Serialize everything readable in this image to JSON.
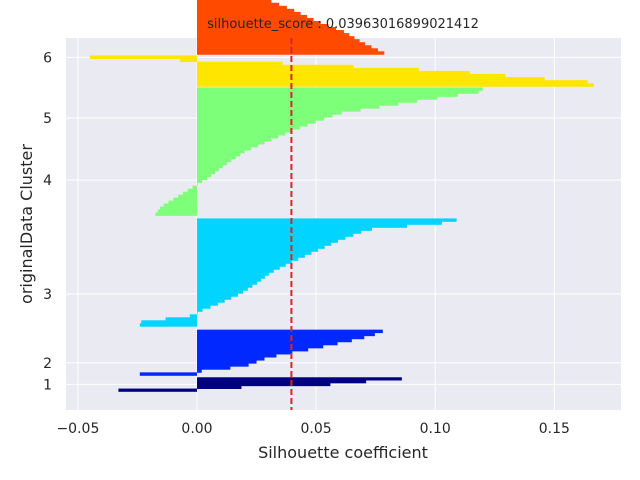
{
  "chart_data": {
    "type": "bar",
    "orientation": "horizontal",
    "title": "silhouette_score : 0.03963016899021412",
    "xlabel": "Silhouette coefficient",
    "ylabel": "originalData Cluster",
    "xlim": [
      -0.055,
      0.178
    ],
    "ylim": [
      0,
      100
    ],
    "grid": true,
    "xticks": [
      {
        "value": -0.05,
        "label": "−0.05"
      },
      {
        "value": 0.0,
        "label": "0.00"
      },
      {
        "value": 0.05,
        "label": "0.05"
      },
      {
        "value": 0.1,
        "label": "0.10"
      },
      {
        "value": 0.15,
        "label": "0.15"
      }
    ],
    "reference_line": {
      "value": 0.03963016899021412,
      "color": "#d62728",
      "style": "dashed"
    },
    "clusters": [
      {
        "label": "1",
        "color": "#000080",
        "y_range": [
          5.0,
          8.8
        ],
        "label_y": 6.9,
        "profile": [
          [
            0,
            0.109
          ],
          [
            0.05,
            0.109
          ],
          [
            0.1,
            0.086
          ],
          [
            0.5,
            0.056
          ],
          [
            0.8,
            0.0
          ],
          [
            0.86,
            -0.033
          ],
          [
            1,
            -0.033
          ]
        ]
      },
      {
        "label": "2",
        "color": "#0028ff",
        "y_range": [
          9.3,
          21.6
        ],
        "label_y": 12.7,
        "profile": [
          [
            0,
            0.078
          ],
          [
            0.05,
            0.078
          ],
          [
            0.2,
            0.068
          ],
          [
            0.4,
            0.05
          ],
          [
            0.6,
            0.03
          ],
          [
            0.8,
            0.02
          ],
          [
            0.9,
            0.002
          ],
          [
            0.94,
            -0.024
          ],
          [
            1,
            -0.024
          ]
        ]
      },
      {
        "label": "3",
        "color": "#00d4ff",
        "y_range": [
          22.5,
          51.5
        ],
        "label_y": 31.2,
        "profile": [
          [
            0,
            0.109
          ],
          [
            0.03,
            0.109
          ],
          [
            0.1,
            0.072
          ],
          [
            0.2,
            0.06
          ],
          [
            0.3,
            0.05
          ],
          [
            0.4,
            0.04
          ],
          [
            0.5,
            0.031
          ],
          [
            0.6,
            0.025
          ],
          [
            0.7,
            0.018
          ],
          [
            0.8,
            0.008
          ],
          [
            0.85,
            0.002
          ],
          [
            0.9,
            -0.002
          ],
          [
            0.96,
            -0.024
          ],
          [
            1,
            -0.024
          ]
        ]
      },
      {
        "label": "4",
        "color": "#7dff7a",
        "y_range": [
          52.3,
          86.7
        ],
        "label_y": 61.8,
        "profile": [
          [
            0,
            0.12
          ],
          [
            0.03,
            0.12
          ],
          [
            0.1,
            0.094
          ],
          [
            0.2,
            0.06
          ],
          [
            0.3,
            0.045
          ],
          [
            0.4,
            0.032
          ],
          [
            0.5,
            0.02
          ],
          [
            0.6,
            0.012
          ],
          [
            0.7,
            0.005
          ],
          [
            0.78,
            -0.002
          ],
          [
            0.85,
            -0.008
          ],
          [
            0.93,
            -0.015
          ],
          [
            1,
            -0.018
          ]
        ]
      },
      {
        "label": "5",
        "color": "#ffe600",
        "y_range": [
          87.0,
          95.3
        ],
        "label_y": 78.5,
        "profile": [
          [
            0,
            -0.045
          ],
          [
            0.08,
            -0.045
          ],
          [
            0.2,
            0.02
          ],
          [
            0.3,
            0.052
          ],
          [
            0.5,
            0.107
          ],
          [
            0.7,
            0.137
          ],
          [
            0.85,
            0.164
          ],
          [
            1,
            0.168
          ]
        ]
      },
      {
        "label": "6",
        "color": "#ff4a00",
        "y_range": [
          95.6,
          125.8
        ],
        "label_y": 94.8,
        "profile": [
          [
            0,
            -0.034
          ],
          [
            0.03,
            -0.034
          ],
          [
            0.06,
            -0.02
          ],
          [
            0.15,
            -0.01
          ],
          [
            0.25,
            -0.003
          ],
          [
            0.3,
            0.002
          ],
          [
            0.4,
            0.015
          ],
          [
            0.5,
            0.028
          ],
          [
            0.6,
            0.04
          ],
          [
            0.7,
            0.05
          ],
          [
            0.8,
            0.062
          ],
          [
            0.9,
            0.07
          ],
          [
            1,
            0.08
          ]
        ]
      }
    ]
  }
}
